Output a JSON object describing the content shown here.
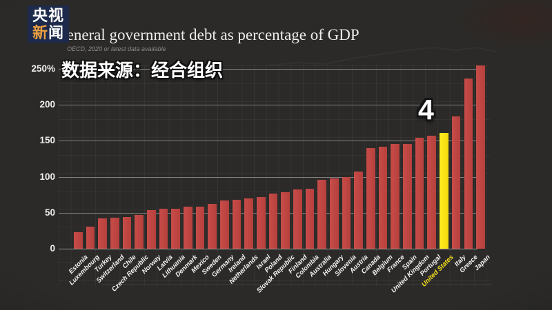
{
  "logo": {
    "line1": "央视",
    "line2_accent_char": "新",
    "line2_char": "闻"
  },
  "header": {
    "title": "General government debt as percentage of GDP",
    "subtitle": "OECD, 2020 or latest data available",
    "cn_overlay": "数据来源：经合组织"
  },
  "annotation": {
    "rank_label": "4"
  },
  "colors": {
    "background": "#2b2a28",
    "bar": "#c0453f",
    "highlight_bar": "#f6e71a",
    "logo_background": "#1d2a4b",
    "logo_accent": "#eda03f",
    "gridline": "rgba(255,255,255,0.42)"
  },
  "y_axis": {
    "tick_labels": [
      "250%",
      "200",
      "150",
      "100",
      "50",
      "0"
    ]
  },
  "chart_data": {
    "type": "bar",
    "title": "General government debt as percentage of GDP",
    "subtitle": "OECD, 2020 or latest data available",
    "unit": "% of GDP",
    "ylim": [
      0,
      250
    ],
    "yticks": [
      0,
      50,
      100,
      150,
      200,
      250
    ],
    "grid": true,
    "highlight_category": "United States",
    "highlight_annotation": "4",
    "categories": [
      "Estonia",
      "Luxembourg",
      "Turkey",
      "Switzerland",
      "Chile",
      "Czech Republic",
      "Norway",
      "Latvia",
      "Lithuania",
      "Denmark",
      "Mexico",
      "Sweden",
      "Germany",
      "Ireland",
      "Netherlands",
      "Israel",
      "Poland",
      "Slovak Republic",
      "Finland",
      "Colombia",
      "Australia",
      "Hungary",
      "Slovenia",
      "Austria",
      "Canada",
      "Belgium",
      "France",
      "Spain",
      "United Kingdom",
      "Portugal",
      "United States",
      "Italy",
      "Greece",
      "Japan"
    ],
    "values": [
      23,
      31,
      42,
      43,
      44,
      47,
      54,
      56,
      56,
      58,
      58,
      62,
      67,
      68,
      70,
      72,
      77,
      79,
      82,
      83,
      96,
      98,
      100,
      107,
      140,
      142,
      146,
      146,
      154,
      157,
      161,
      184,
      237,
      255
    ]
  }
}
